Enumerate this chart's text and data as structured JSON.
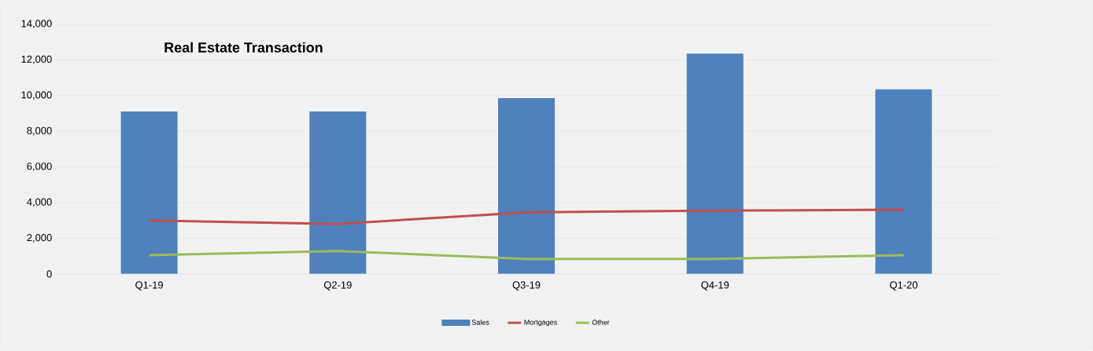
{
  "chart_data": {
    "type": "bar",
    "title": "Real Estate Transaction",
    "categories": [
      "Q1-19",
      "Q2-19",
      "Q3-19",
      "Q4-19",
      "Q1-20"
    ],
    "series": [
      {
        "name": "Sales",
        "color": "#4f81bd",
        "values": [
          9100,
          9100,
          9850,
          12350,
          10350
        ]
      },
      {
        "name": "Mortgages",
        "type": "line",
        "color": "#c0504d",
        "values": [
          3000,
          2800,
          3450,
          3550,
          3600
        ]
      },
      {
        "name": "Other",
        "type": "line",
        "color": "#9bbb59",
        "values": [
          1050,
          1280,
          840,
          840,
          1050
        ]
      }
    ],
    "ylim": [
      0,
      14000
    ],
    "yticks": [
      0,
      {
        "value": 2000,
        "label": "2,000"
      },
      {
        "value": 4000,
        "label": "4,000"
      },
      {
        "value": 6000,
        "label": "6,000"
      },
      {
        "value": 8000,
        "label": "8,000"
      },
      {
        "value": 10000,
        "label": "10,000"
      },
      {
        "value": 12000,
        "label": "12,000"
      },
      {
        "value": 14000,
        "label": "14,000"
      }
    ],
    "grid": "y",
    "legend": "bottom"
  }
}
